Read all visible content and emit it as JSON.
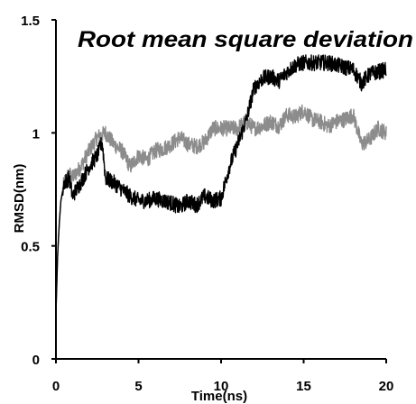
{
  "chart_data": {
    "type": "line",
    "title": "Root mean square deviation",
    "xlabel": "Time(ns)",
    "ylabel": "RMSD(nm)",
    "xlim": [
      0,
      20
    ],
    "ylim": [
      0,
      1.5
    ],
    "x_ticks": [
      "0",
      "5",
      "10",
      "15",
      "20"
    ],
    "y_ticks": [
      "0",
      "0.5",
      "1",
      "1.5"
    ],
    "legend": "none",
    "grid": false,
    "series": [
      {
        "color": "#000000",
        "x": [
          0,
          0.1,
          0.2,
          0.3,
          0.5,
          0.8,
          1.0,
          1.5,
          2.0,
          2.5,
          2.8,
          3.0,
          3.5,
          4.0,
          4.5,
          5.0,
          5.5,
          6.0,
          6.5,
          7.0,
          7.5,
          8.0,
          8.5,
          9.0,
          9.5,
          10.0,
          10.5,
          11.0,
          11.5,
          12.0,
          12.5,
          13.0,
          13.5,
          14.0,
          14.5,
          15.0,
          15.5,
          16.0,
          16.5,
          17.0,
          17.5,
          18.0,
          18.5,
          19.0,
          19.5,
          20.0
        ],
        "values": [
          0.2,
          0.45,
          0.6,
          0.7,
          0.78,
          0.8,
          0.72,
          0.78,
          0.85,
          0.9,
          0.96,
          0.8,
          0.78,
          0.75,
          0.72,
          0.7,
          0.7,
          0.71,
          0.7,
          0.69,
          0.67,
          0.7,
          0.68,
          0.72,
          0.7,
          0.71,
          0.85,
          0.95,
          1.05,
          1.2,
          1.24,
          1.25,
          1.23,
          1.27,
          1.3,
          1.31,
          1.31,
          1.31,
          1.31,
          1.3,
          1.29,
          1.28,
          1.22,
          1.26,
          1.27,
          1.28
        ]
      },
      {
        "color": "#8c8c8c",
        "x": [
          0,
          0.1,
          0.2,
          0.3,
          0.5,
          0.8,
          1.0,
          1.5,
          2.0,
          2.5,
          3.0,
          3.5,
          4.0,
          4.5,
          5.0,
          5.5,
          6.0,
          6.5,
          7.0,
          7.5,
          8.0,
          8.5,
          9.0,
          9.5,
          10.0,
          10.5,
          11.0,
          11.5,
          12.0,
          12.5,
          13.0,
          13.5,
          14.0,
          14.5,
          15.0,
          15.5,
          16.0,
          16.5,
          17.0,
          17.5,
          18.0,
          18.5,
          19.0,
          19.5,
          20.0
        ],
        "values": [
          0.2,
          0.45,
          0.6,
          0.7,
          0.78,
          0.82,
          0.8,
          0.85,
          0.92,
          0.98,
          1.0,
          0.95,
          0.92,
          0.85,
          0.9,
          0.88,
          0.92,
          0.93,
          0.95,
          0.98,
          0.95,
          0.94,
          0.96,
          1.02,
          1.02,
          1.02,
          1.02,
          1.05,
          1.02,
          1.03,
          1.05,
          1.03,
          1.08,
          1.07,
          1.1,
          1.06,
          1.05,
          1.03,
          1.05,
          1.06,
          1.08,
          0.95,
          0.97,
          1.02,
          1.0
        ]
      }
    ]
  }
}
